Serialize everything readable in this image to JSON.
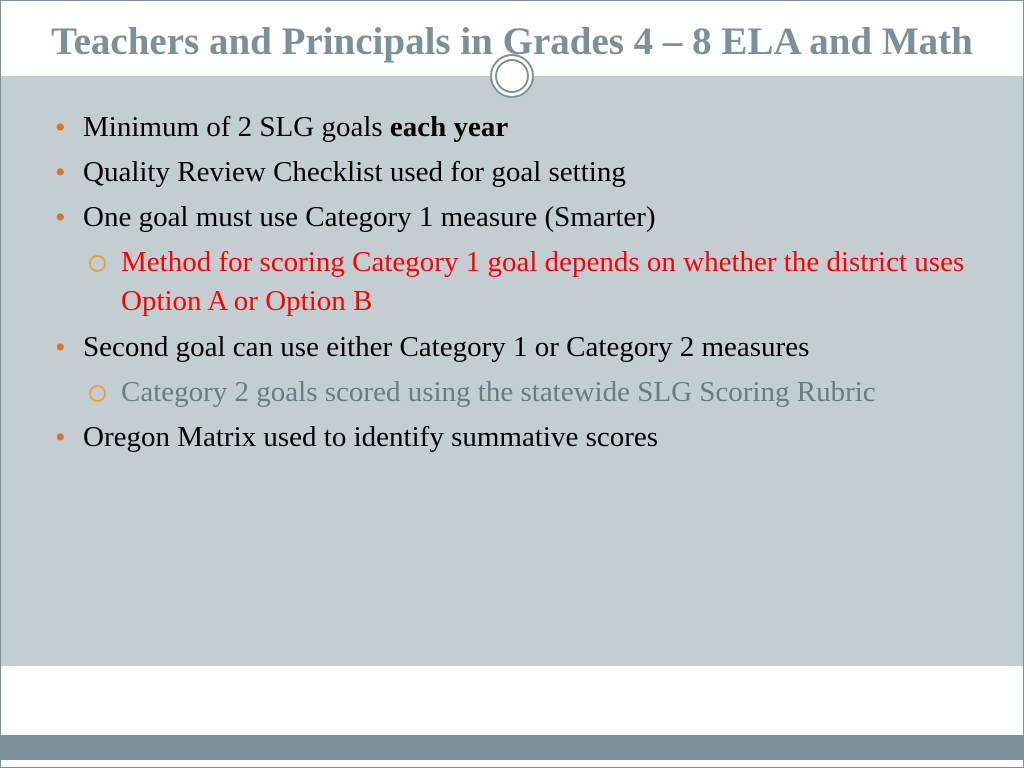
{
  "colors": {
    "title_color": "#7a9199",
    "body_bg": "#c3ced2",
    "footer_bar": "#7a9199",
    "bullet_filled": "#d9732e",
    "bullet_ring": "#e8a33d",
    "text_black": "#000000",
    "text_red": "#ff0000",
    "text_gray": "#6b7b82",
    "divider": "#b8c4c8"
  },
  "typography": {
    "title_fontsize": 39,
    "body_fontsize": 29,
    "font_family": "Georgia"
  },
  "title": "Teachers and Principals in Grades 4 – 8 ELA and Math",
  "bullets": {
    "b1_prefix": "Minimum of 2 SLG goals ",
    "b1_bold": "each year",
    "b2": "Quality Review Checklist used for goal setting",
    "b3": "One goal must use Category 1 measure (Smarter)",
    "b3_sub": "Method for scoring Category 1 goal depends on whether the district uses Option A or Option B",
    "b4": "Second goal can use either Category 1 or Category 2 measures",
    "b4_sub": "Category 2 goals scored using the statewide SLG Scoring Rubric",
    "b5": "Oregon Matrix used to identify summative scores"
  }
}
